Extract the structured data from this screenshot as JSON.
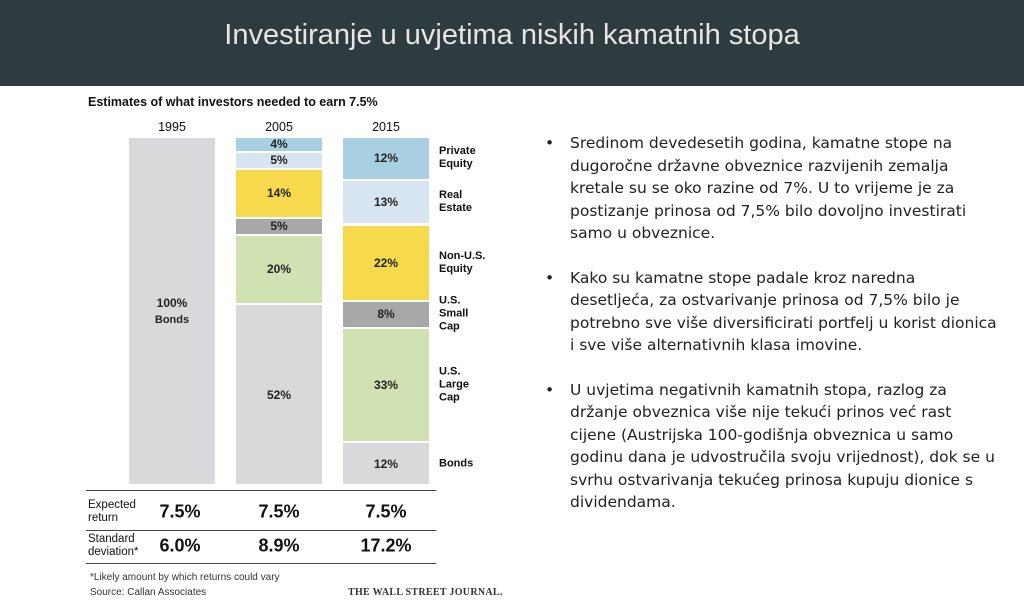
{
  "slide_title": "Investiranje u uvjetima niskih kamatnih stopa",
  "bullets": [
    "Sredinom devedesetih godina, kamatne stope na dugoročne državne obveznice razvijenih zemalja kretale su se oko razine od 7%. U to vrijeme je za postizanje prinosa od 7,5% bilo dovoljno investirati samo u obveznice.",
    "Kako su kamatne stope padale kroz naredna desetljeća, za ostvarivanje prinosa od 7,5% bilo je potrebno sve više diversificirati portfelj u korist dionica i sve više alternativnih klasa imovine.",
    "U uvjetima negativnih kamatnih stopa, razlog za držanje obveznica više nije tekući prinos već rast cijene (Austrijska 100-godišnja obveznica u samo godinu dana je udvostručila svoju vrijednost), dok se u svrhu ostvarivanja tekućeg prinosa kupuju dionice s dividendama."
  ],
  "chart_data": {
    "type": "stacked_bar",
    "title": "Estimates of what investors needed to earn 7.5%",
    "categories": [
      "1995",
      "2005",
      "2015"
    ],
    "ylim": [
      0,
      100
    ],
    "inner_label": "Bonds",
    "series": [
      {
        "name": "Bonds",
        "color": "#d9d9dc",
        "values": [
          100,
          52,
          12
        ],
        "value_labels": [
          "100%",
          "52%",
          "12%"
        ]
      },
      {
        "name": "U.S. Large Cap",
        "color": "#d0e2b1",
        "values": [
          null,
          20,
          33
        ],
        "value_labels": [
          null,
          "20%",
          "33%"
        ]
      },
      {
        "name": "U.S. Small Cap",
        "color": "#a8a8a8",
        "values": [
          null,
          5,
          8
        ],
        "value_labels": [
          null,
          "5%",
          "8%"
        ]
      },
      {
        "name": "Non-U.S. Equity",
        "color": "#f7da4c",
        "values": [
          null,
          14,
          22
        ],
        "value_labels": [
          null,
          "14%",
          "22%"
        ]
      },
      {
        "name": "Real Estate",
        "color": "#d7e5f0",
        "values": [
          null,
          5,
          13
        ],
        "value_labels": [
          null,
          "5%",
          "13%"
        ]
      },
      {
        "name": "Private Equity",
        "color": "#a9d0e2",
        "values": [
          null,
          4,
          12
        ],
        "value_labels": [
          null,
          "4%",
          "12%"
        ]
      }
    ],
    "table": [
      {
        "label": "Expected return",
        "cells": [
          "7.5%",
          "7.5%",
          "7.5%"
        ]
      },
      {
        "label": "Standard deviation*",
        "cells": [
          "6.0%",
          "8.9%",
          "17.2%"
        ]
      }
    ],
    "footnote": "*Likely amount by which returns could vary",
    "source": "Source: Callan Associates",
    "credit": "THE WALL STREET JOURNAL."
  }
}
